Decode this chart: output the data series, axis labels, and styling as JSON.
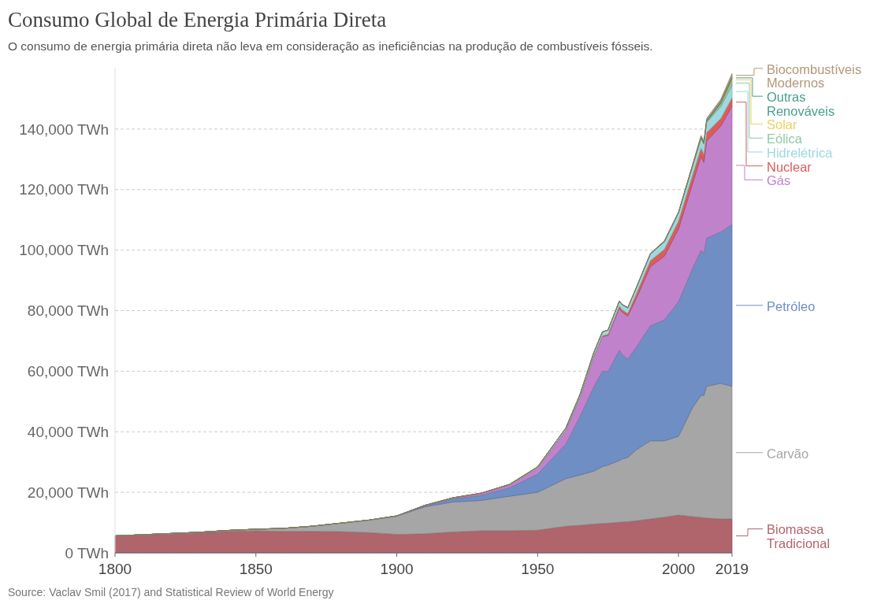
{
  "chart_data": {
    "type": "area",
    "stacked": true,
    "title": "Consumo Global de Energia Primária Direta",
    "subtitle": "O consumo de energia primária direta não leva em consideração as ineficiências na produção de combustíveis fósseis.",
    "x": [
      1800,
      1810,
      1820,
      1830,
      1840,
      1850,
      1860,
      1870,
      1880,
      1890,
      1900,
      1910,
      1920,
      1930,
      1940,
      1950,
      1960,
      1965,
      1970,
      1973,
      1975,
      1979,
      1980,
      1982,
      1985,
      1990,
      1995,
      2000,
      2005,
      2008,
      2009,
      2010,
      2015,
      2019
    ],
    "xlim": [
      1800,
      2019
    ],
    "xticks": [
      1800,
      1850,
      1900,
      1950,
      2000,
      2019
    ],
    "yticks": [
      {
        "value": 0,
        "label": "0 TWh"
      },
      {
        "value": 20000,
        "label": "20,000 TWh"
      },
      {
        "value": 40000,
        "label": "40,000 TWh"
      },
      {
        "value": 60000,
        "label": "60,000 TWh"
      },
      {
        "value": 80000,
        "label": "80,000 TWh"
      },
      {
        "value": 100000,
        "label": "100,000 TWh"
      },
      {
        "value": 120000,
        "label": "120,000 TWh"
      },
      {
        "value": 140000,
        "label": "140,000 TWh"
      }
    ],
    "ylim": [
      0,
      160000
    ],
    "grid": "y",
    "legend": "right",
    "series": [
      {
        "name": "Biomassa Tradicional",
        "color": "#b0646c",
        "values": [
          5600,
          5900,
          6200,
          6600,
          7100,
          7300,
          7100,
          7100,
          7000,
          6700,
          6100,
          6300,
          6900,
          7300,
          7300,
          7500,
          8800,
          9100,
          9500,
          9700,
          9800,
          10100,
          10200,
          10300,
          10600,
          11200,
          11800,
          12500,
          12000,
          11700,
          11600,
          11500,
          11200,
          11200
        ]
      },
      {
        "name": "Carvão",
        "color": "#a6a6a6",
        "values": [
          0,
          100,
          200,
          200,
          300,
          500,
          1000,
          1700,
          2800,
          4100,
          6000,
          8900,
          9900,
          10000,
          11400,
          12500,
          15700,
          16600,
          17500,
          18800,
          19200,
          20400,
          20800,
          21200,
          23400,
          25800,
          25200,
          26000,
          36000,
          40300,
          40400,
          43500,
          44800,
          43800
        ]
      },
      {
        "name": "Petróleo",
        "color": "#6e8ec4",
        "values": [
          0,
          0,
          0,
          0,
          0,
          0,
          0,
          0,
          0,
          0,
          0,
          300,
          1000,
          1700,
          2800,
          6000,
          11500,
          19300,
          28000,
          31500,
          31000,
          36500,
          34500,
          32500,
          34000,
          38000,
          40000,
          44500,
          46000,
          48000,
          47000,
          49000,
          50000,
          53500
        ]
      },
      {
        "name": "Gás",
        "color": "#c182cc",
        "values": [
          0,
          0,
          0,
          0,
          0,
          0,
          0,
          0,
          0,
          0,
          100,
          200,
          300,
          600,
          900,
          2000,
          4500,
          6300,
          10000,
          11500,
          11800,
          13800,
          14000,
          14200,
          16000,
          19500,
          21000,
          24000,
          28000,
          31000,
          30000,
          32000,
          35000,
          39000
        ]
      },
      {
        "name": "Nuclear",
        "color": "#de5b5b",
        "values": [
          0,
          0,
          0,
          0,
          0,
          0,
          0,
          0,
          0,
          0,
          0,
          0,
          0,
          0,
          0,
          0,
          0,
          0,
          100,
          200,
          400,
          700,
          800,
          900,
          1500,
          2000,
          2300,
          2600,
          2800,
          2700,
          2700,
          2800,
          2500,
          2800
        ]
      },
      {
        "name": "Hidrelétrica",
        "color": "#9dd9de",
        "values": [
          0,
          0,
          0,
          0,
          0,
          0,
          0,
          0,
          0,
          0,
          0,
          0,
          100,
          100,
          200,
          400,
          700,
          900,
          1200,
          1300,
          1400,
          1600,
          1700,
          1800,
          2000,
          2200,
          2500,
          2700,
          2900,
          3200,
          3300,
          3400,
          3900,
          4200
        ]
      },
      {
        "name": "Eólica",
        "color": "#90c9a6",
        "values": [
          0,
          0,
          0,
          0,
          0,
          0,
          0,
          0,
          0,
          0,
          0,
          0,
          0,
          0,
          0,
          0,
          0,
          0,
          0,
          0,
          0,
          0,
          0,
          0,
          0,
          0,
          0,
          0,
          100,
          200,
          300,
          300,
          800,
          1400
        ]
      },
      {
        "name": "Solar",
        "color": "#ecd15f",
        "values": [
          0,
          0,
          0,
          0,
          0,
          0,
          0,
          0,
          0,
          0,
          0,
          0,
          0,
          0,
          0,
          0,
          0,
          0,
          0,
          0,
          0,
          0,
          0,
          0,
          0,
          0,
          0,
          0,
          0,
          0,
          0,
          0,
          300,
          700
        ]
      },
      {
        "name": "Outras Renováveis",
        "color": "#4a9e8f",
        "values": [
          0,
          0,
          0,
          0,
          0,
          0,
          0,
          0,
          0,
          0,
          0,
          0,
          0,
          0,
          0,
          0,
          0,
          0,
          0,
          0,
          0,
          100,
          100,
          100,
          100,
          100,
          200,
          200,
          300,
          300,
          300,
          400,
          500,
          600
        ]
      },
      {
        "name": "Biocombustíveis Modernos",
        "color": "#b5977a",
        "values": [
          0,
          0,
          0,
          0,
          0,
          0,
          0,
          0,
          0,
          0,
          0,
          0,
          0,
          0,
          0,
          0,
          0,
          0,
          0,
          0,
          0,
          0,
          0,
          0,
          0,
          100,
          100,
          100,
          200,
          500,
          500,
          600,
          800,
          1100
        ]
      }
    ],
    "annotations": [
      "Source: Vaclav Smil (2017) and Statistical Review of World Energy"
    ]
  }
}
